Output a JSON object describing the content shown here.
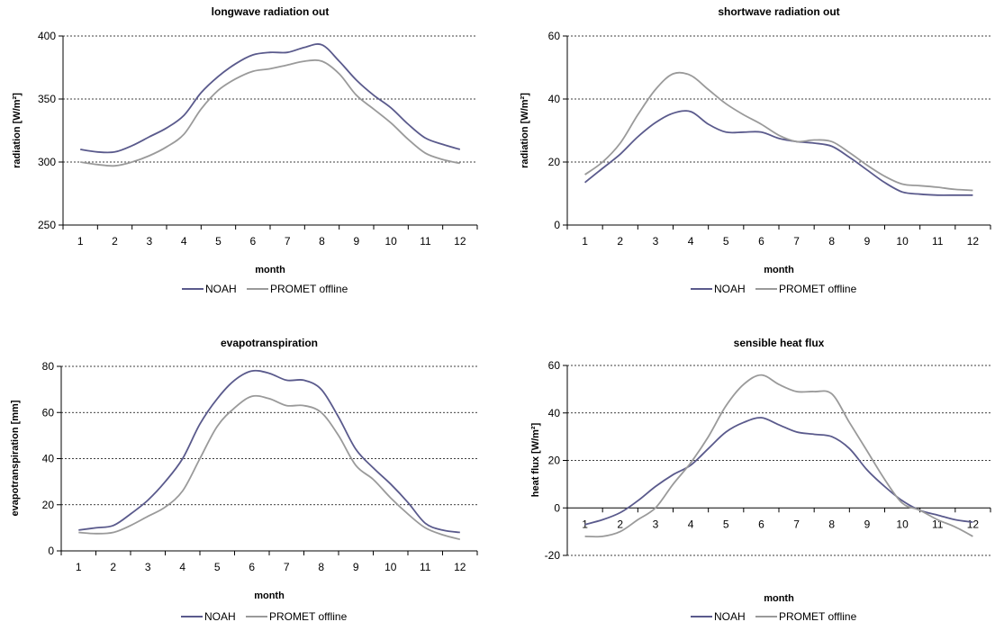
{
  "chart_data": [
    {
      "type": "line",
      "title": "longwave radiation out",
      "xlabel": "month",
      "ylabel": "radiation [W/m²]",
      "categories": [
        "1",
        "2",
        "3",
        "4",
        "5",
        "6",
        "7",
        "8",
        "9",
        "10",
        "11",
        "12"
      ],
      "ylim": [
        250,
        400
      ],
      "yticks": [
        "250",
        "300",
        "350",
        "400"
      ],
      "grid": "horizontal dotted",
      "legend": "bottom",
      "x": [
        1,
        1.5,
        2,
        2.5,
        3,
        3.5,
        4,
        4.5,
        5,
        5.5,
        6,
        6.5,
        7,
        7.5,
        8,
        8.5,
        9,
        9.5,
        10,
        10.5,
        11,
        11.5,
        12
      ],
      "series": [
        {
          "name": "NOAH",
          "color": "#5a5a8c",
          "values": [
            310,
            308,
            308,
            313,
            320,
            327,
            337,
            355,
            368,
            378,
            385,
            387,
            387,
            391,
            393,
            380,
            365,
            353,
            343,
            330,
            319,
            314,
            310
          ]
        },
        {
          "name": "PROMET offline",
          "color": "#9a9a9a",
          "values": [
            300,
            298,
            297,
            300,
            305,
            312,
            322,
            342,
            357,
            366,
            372,
            374,
            377,
            380,
            380,
            370,
            353,
            342,
            331,
            318,
            307,
            302,
            299
          ]
        }
      ]
    },
    {
      "type": "line",
      "title": "shortwave radiation out",
      "xlabel": "month",
      "ylabel": "radiation [W/m²]",
      "categories": [
        "1",
        "2",
        "3",
        "4",
        "5",
        "6",
        "7",
        "8",
        "9",
        "10",
        "11",
        "12"
      ],
      "ylim": [
        0,
        60
      ],
      "yticks": [
        "0",
        "20",
        "40",
        "60"
      ],
      "grid": "horizontal dotted",
      "legend": "bottom",
      "x": [
        1,
        1.5,
        2,
        2.5,
        3,
        3.5,
        4,
        4.5,
        5,
        5.5,
        6,
        6.5,
        7,
        7.5,
        8,
        8.5,
        9,
        9.5,
        10,
        10.5,
        11,
        11.5,
        12
      ],
      "series": [
        {
          "name": "NOAH",
          "color": "#5a5a8c",
          "values": [
            13.5,
            18,
            22.5,
            28,
            32.5,
            35.5,
            36,
            32,
            29.5,
            29.5,
            29.5,
            27.5,
            26.5,
            26,
            25,
            21.5,
            17.5,
            13.5,
            10.5,
            9.8,
            9.5,
            9.5,
            9.5
          ]
        },
        {
          "name": "PROMET offline",
          "color": "#9a9a9a",
          "values": [
            16,
            20,
            26,
            35,
            43,
            48,
            47.5,
            43,
            38.5,
            35,
            32,
            28.5,
            26.5,
            27,
            26.5,
            23,
            19,
            15.5,
            13,
            12.5,
            12,
            11.3,
            11
          ]
        }
      ]
    },
    {
      "type": "line",
      "title": "evapotranspiration",
      "xlabel": "month",
      "ylabel": "evapotranspiration  [mm]",
      "categories": [
        "1",
        "2",
        "3",
        "4",
        "5",
        "6",
        "7",
        "8",
        "9",
        "10",
        "11",
        "12"
      ],
      "ylim": [
        0,
        80
      ],
      "yticks": [
        "0",
        "20",
        "40",
        "60",
        "80"
      ],
      "grid": "horizontal dotted",
      "legend": "bottom",
      "x": [
        1,
        1.5,
        2,
        2.5,
        3,
        3.5,
        4,
        4.5,
        5,
        5.5,
        6,
        6.5,
        7,
        7.5,
        8,
        8.5,
        9,
        9.5,
        10,
        10.5,
        11,
        11.5,
        12
      ],
      "series": [
        {
          "name": "NOAH",
          "color": "#5a5a8c",
          "values": [
            9,
            10,
            11,
            16,
            22,
            30,
            40,
            55,
            66,
            74,
            78,
            77,
            74,
            74,
            70,
            58,
            44,
            36,
            29,
            21,
            12,
            9,
            8
          ]
        },
        {
          "name": "PROMET offline",
          "color": "#9a9a9a",
          "values": [
            8,
            7.5,
            8,
            11,
            15,
            19,
            26,
            40,
            54,
            62,
            67,
            66,
            63,
            63,
            60,
            50,
            37,
            31,
            23,
            16,
            10,
            7,
            5
          ]
        }
      ]
    },
    {
      "type": "line",
      "title": "sensible heat flux",
      "xlabel": "month",
      "ylabel": "heat flux  [W/m²]",
      "categories": [
        "1",
        "2",
        "3",
        "4",
        "5",
        "6",
        "7",
        "8",
        "9",
        "10",
        "11",
        "12"
      ],
      "ylim": [
        -20,
        60
      ],
      "yticks": [
        "-20",
        "0",
        "20",
        "40",
        "60"
      ],
      "grid": "horizontal dotted",
      "legend": "bottom",
      "x": [
        1,
        1.5,
        2,
        2.5,
        3,
        3.5,
        4,
        4.5,
        5,
        5.5,
        6,
        6.5,
        7,
        7.5,
        8,
        8.5,
        9,
        9.5,
        10,
        10.5,
        11,
        11.5,
        12
      ],
      "series": [
        {
          "name": "NOAH",
          "color": "#5a5a8c",
          "values": [
            -7,
            -5,
            -2,
            3,
            9,
            14,
            18,
            25,
            32,
            36,
            38,
            35,
            32,
            31,
            30,
            25,
            16,
            9,
            3,
            -1,
            -3,
            -5,
            -6
          ]
        },
        {
          "name": "PROMET offline",
          "color": "#9a9a9a",
          "values": [
            -12,
            -12,
            -10,
            -5,
            0,
            10,
            19,
            30,
            43,
            52,
            56,
            52,
            49,
            49,
            48,
            36,
            24,
            12,
            2,
            -1,
            -5,
            -8,
            -12
          ]
        }
      ]
    }
  ]
}
